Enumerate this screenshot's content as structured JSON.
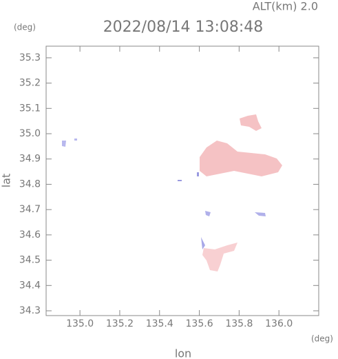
{
  "chart_data": {
    "type": "map",
    "title": "2022/08/14 13:08:48",
    "subtitle": "ALT(km)  2.0",
    "xlabel": "lon",
    "ylabel": "lat",
    "xunit": "(deg)",
    "yunit": "(deg)",
    "xlim": [
      134.83,
      136.2
    ],
    "ylim": [
      34.281,
      35.346
    ],
    "xticks": [
      {
        "value": 135.0,
        "label": "135.0"
      },
      {
        "value": 135.2,
        "label": "135.2"
      },
      {
        "value": 135.4,
        "label": "135.4"
      },
      {
        "value": 135.6,
        "label": "135.6"
      },
      {
        "value": 135.8,
        "label": "135.8"
      },
      {
        "value": 136.0,
        "label": "136.0"
      }
    ],
    "yticks": [
      {
        "value": 34.3,
        "label": "34.3"
      },
      {
        "value": 34.4,
        "label": "34.4"
      },
      {
        "value": 34.5,
        "label": "34.5"
      },
      {
        "value": 34.6,
        "label": "34.6"
      },
      {
        "value": 34.7,
        "label": "34.7"
      },
      {
        "value": 34.8,
        "label": "34.8"
      },
      {
        "value": 34.9,
        "label": "34.9"
      },
      {
        "value": 35.0,
        "label": "35.0"
      },
      {
        "value": 35.1,
        "label": "35.1"
      },
      {
        "value": 35.2,
        "label": "35.2"
      },
      {
        "value": 35.3,
        "label": "35.3"
      }
    ]
  }
}
